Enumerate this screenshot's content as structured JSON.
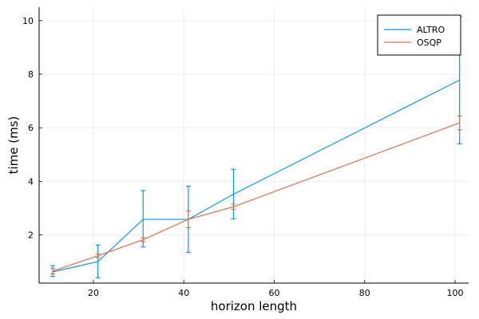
{
  "chart_data": {
    "type": "line",
    "xlabel": "horizon length",
    "ylabel": "time (ms)",
    "xlim": [
      8,
      103
    ],
    "ylim": [
      0.2,
      10.5
    ],
    "x_ticks": [
      20,
      40,
      60,
      80,
      100
    ],
    "y_ticks": [
      2,
      4,
      6,
      8,
      10
    ],
    "grid": true,
    "legend_position": "top-right",
    "x": [
      11,
      21,
      31,
      41,
      51,
      101
    ],
    "series": [
      {
        "name": "ALTRO",
        "color": "#009AFA",
        "values": [
          0.62,
          1.0,
          2.58,
          2.58,
          3.52,
          7.78
        ],
        "error_low": [
          0.45,
          0.4,
          1.55,
          1.35,
          2.6,
          5.4
        ],
        "error_high": [
          0.85,
          1.62,
          3.65,
          3.82,
          4.45,
          10.15
        ]
      },
      {
        "name": "OSQP",
        "color": "#E36F47",
        "values": [
          0.65,
          1.22,
          1.82,
          2.58,
          3.05,
          6.18
        ],
        "error_low": [
          0.55,
          1.15,
          1.75,
          2.27,
          2.95,
          5.92
        ],
        "error_high": [
          0.75,
          1.29,
          1.9,
          2.89,
          3.15,
          6.44
        ]
      }
    ]
  }
}
